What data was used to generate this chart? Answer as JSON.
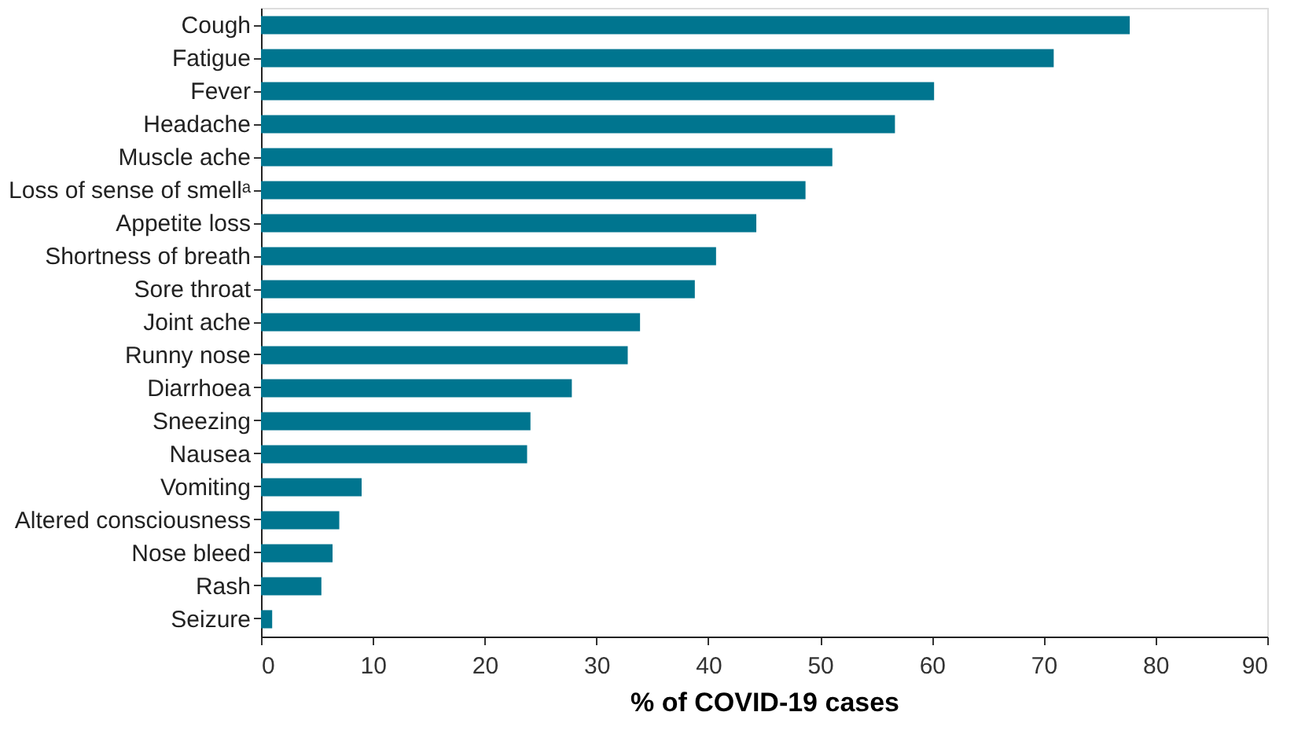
{
  "chart_data": {
    "type": "bar",
    "orientation": "horizontal",
    "categories": [
      "Cough",
      "Fatigue",
      "Fever",
      "Headache",
      "Muscle ache",
      "Loss of sense of smellᵃ",
      "Appetite loss",
      "Shortness of breath",
      "Sore throat",
      "Joint ache",
      "Runny nose",
      "Diarrhoea",
      "Sneezing",
      "Nausea",
      "Vomiting",
      "Altered consciousness",
      "Nose bleed",
      "Rash",
      "Seizure"
    ],
    "values": [
      77.7,
      70.9,
      60.2,
      56.7,
      51.1,
      48.7,
      44.3,
      40.7,
      38.8,
      33.9,
      32.8,
      27.8,
      24.1,
      23.8,
      9.0,
      7.0,
      6.4,
      5.4,
      1.0
    ],
    "color": "#00758f",
    "xlabel": "% of COVID-19 cases",
    "xlim": [
      0,
      90
    ],
    "xticks": [
      0,
      10,
      20,
      30,
      40,
      50,
      60,
      70,
      80,
      90
    ],
    "grid": false
  }
}
